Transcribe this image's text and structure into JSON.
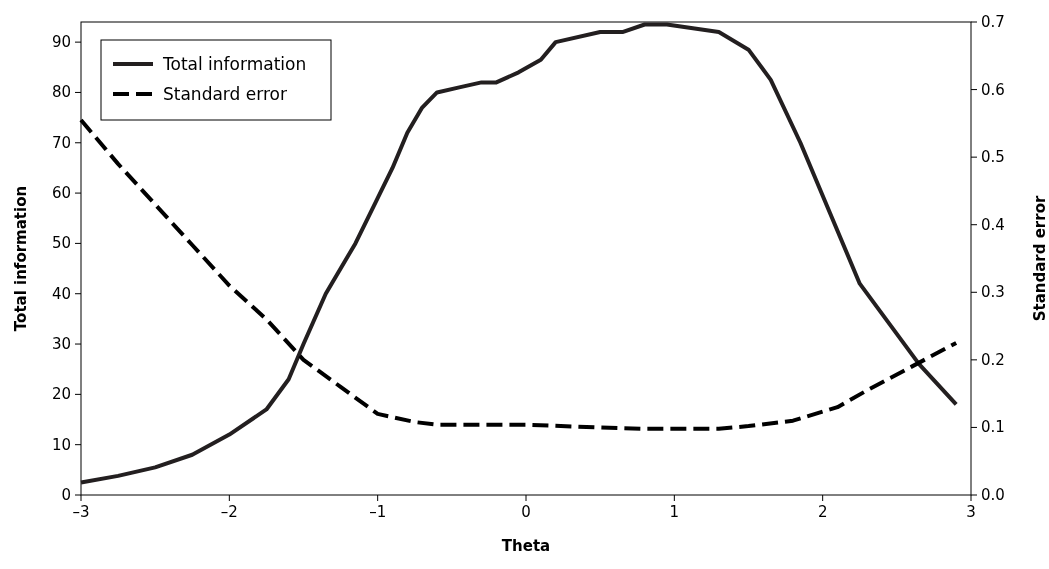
{
  "chart_data": {
    "type": "line",
    "xlabel": "Theta",
    "ylabel": "Total information",
    "y2label": "Standard error",
    "xlim": [
      -3,
      3
    ],
    "xticks": [
      {
        "value": -3,
        "label": "–3"
      },
      {
        "value": -2,
        "label": "–2"
      },
      {
        "value": -1,
        "label": "–1"
      },
      0,
      1,
      2,
      3
    ],
    "ylim": [
      0,
      94
    ],
    "yticks": [
      0,
      10,
      20,
      30,
      40,
      50,
      60,
      70,
      80,
      90
    ],
    "y2lim": [
      0,
      0.7
    ],
    "y2ticks": [
      {
        "value": 0,
        "label": "0.0"
      },
      0.1,
      0.2,
      0.3,
      0.4,
      0.5,
      0.6,
      0.7
    ],
    "legend": "top left",
    "grid": false,
    "series": [
      {
        "name": "Total information",
        "color": "#231f20",
        "line_style": "solid",
        "x": [
          -3,
          -2.75,
          -2.5,
          -2.25,
          -2,
          -1.75,
          -1.6,
          -1.5,
          -1.35,
          -1.15,
          -1,
          -0.9,
          -0.8,
          -0.7,
          -0.6,
          -0.45,
          -0.3,
          -0.2,
          -0.05,
          0.1,
          0.2,
          0.5,
          0.65,
          0.8,
          0.95,
          1.3,
          1.5,
          1.65,
          1.85,
          2.05,
          2.25,
          2.45,
          2.65,
          2.9
        ],
        "values": [
          2.5,
          3.8,
          5.5,
          8,
          12,
          17,
          23,
          30,
          40,
          50,
          59,
          65,
          72,
          77,
          80,
          81,
          82,
          82,
          84,
          86.5,
          90,
          92,
          92,
          93.5,
          93.5,
          92,
          88.5,
          82.5,
          70,
          56,
          42,
          34,
          26,
          18
        ]
      },
      {
        "name": "Standard error",
        "color": "#000000",
        "line_style": "dashed",
        "axis": "y2",
        "x": [
          -3,
          -2.75,
          -2.5,
          -2.25,
          -2,
          -1.75,
          -1.5,
          -1.25,
          -1,
          -0.75,
          -0.6,
          0,
          0.5,
          0.8,
          1.3,
          1.5,
          1.8,
          2.1,
          2.3,
          2.6,
          2.9
        ],
        "values": [
          0.555,
          0.49,
          0.43,
          0.37,
          0.31,
          0.26,
          0.2,
          0.16,
          0.12,
          0.108,
          0.104,
          0.104,
          0.1,
          0.098,
          0.098,
          0.102,
          0.11,
          0.13,
          0.155,
          0.19,
          0.225
        ]
      }
    ]
  }
}
